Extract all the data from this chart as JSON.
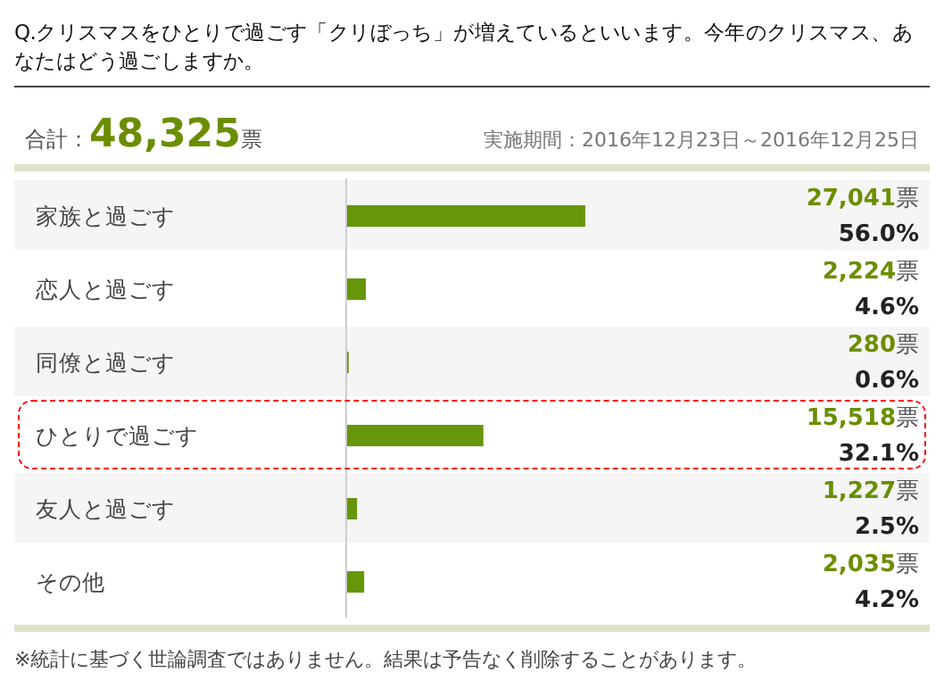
{
  "chart_data": {
    "type": "bar",
    "orientation": "horizontal",
    "title": "Q.クリスマスをひとりで過ごす「クリぼっち」が増えているといいます。今年のクリスマス、あなたはどう過ごしますか。",
    "annotations": [
      "合計：48,325票",
      "実施期間：2016年12月23日～2016年12月25日",
      "※統計に基づく世論調査ではありません。結果は予告なく削除することがあります。"
    ],
    "categories": [
      "家族と過ごす",
      "恋人と過ごす",
      "同僚と過ごす",
      "ひとりで過ごす",
      "友人と過ごす",
      "その他"
    ],
    "values": [
      27041,
      2224,
      280,
      15518,
      1227,
      2035
    ],
    "value_labels": [
      "27,041票\n56.0%",
      "2,224票\n4.6%",
      "280票\n0.6%",
      "15,518票\n32.1%",
      "1,227票\n2.5%",
      "2,035票\n4.2%"
    ],
    "color": "#66960a",
    "xlim": [
      0,
      66000
    ],
    "grid": false,
    "legend": false
  }
}
